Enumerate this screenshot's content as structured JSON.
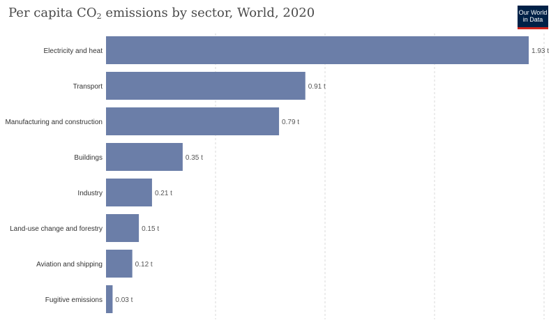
{
  "header": {
    "title_prefix": "Per capita CO",
    "title_sub": "2",
    "title_suffix": " emissions by sector, World, 2020"
  },
  "logo": {
    "line1": "Our World",
    "line2": "in Data"
  },
  "colors": {
    "bar": "#6b7ea8",
    "grid": "#d8d8d8",
    "label": "#333333",
    "value": "#555555"
  },
  "chart_data": {
    "type": "bar",
    "orientation": "horizontal",
    "title": "Per capita CO2 emissions by sector, World, 2020",
    "categories": [
      "Electricity and heat",
      "Transport",
      "Manufacturing and construction",
      "Buildings",
      "Industry",
      "Land-use change and forestry",
      "Aviation and shipping",
      "Fugitive emissions"
    ],
    "values": [
      1.93,
      0.91,
      0.79,
      0.35,
      0.21,
      0.15,
      0.12,
      0.03
    ],
    "value_labels": [
      "1.93 t",
      "0.91 t",
      "0.79 t",
      "0.35 t",
      "0.21 t",
      "0.15 t",
      "0.12 t",
      "0.03 t"
    ],
    "unit": "t",
    "xlim": [
      0,
      2
    ],
    "gridlines": [
      0.5,
      1,
      1.5,
      2
    ],
    "grid": true
  }
}
